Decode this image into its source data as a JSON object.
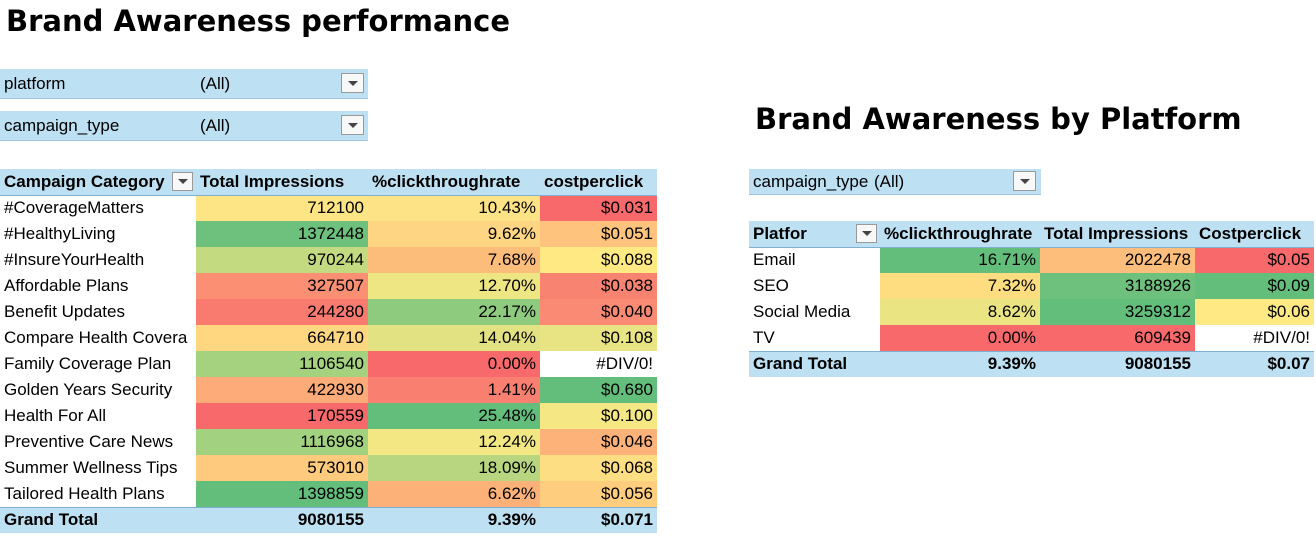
{
  "main_title": "Brand Awareness performance",
  "side_title": "Brand Awareness by Platform",
  "filters": {
    "platform": {
      "label": "platform",
      "value": "(All)"
    },
    "campaign_type": {
      "label": "campaign_type",
      "value": "(All)"
    }
  },
  "side_filter": {
    "label": "campaign_type",
    "value": "(All)"
  },
  "campaign_table": {
    "headers": [
      "Campaign Category",
      "Total Impressions",
      "%clickthroughrate",
      "costperclick"
    ],
    "rows": [
      {
        "name": "#CoverageMatters",
        "impressions": "712100",
        "ctr": "10.43%",
        "cpc": "$0.031",
        "colors": [
          "#fde484",
          "#fde386",
          "#f8696b"
        ]
      },
      {
        "name": "#HealthyLiving",
        "impressions": "1372448",
        "ctr": "9.62%",
        "cpc": "$0.051",
        "colors": [
          "#6dc17c",
          "#fed582",
          "#fec37c"
        ]
      },
      {
        "name": "#InsureYourHealth",
        "impressions": "970244",
        "ctr": "7.68%",
        "cpc": "$0.088",
        "colors": [
          "#c4da81",
          "#fcbd7b",
          "#fee983"
        ]
      },
      {
        "name": "Affordable Plans",
        "impressions": "327507",
        "ctr": "12.70%",
        "cpc": "$0.038",
        "colors": [
          "#fa8f74",
          "#eee583",
          "#f98371"
        ]
      },
      {
        "name": "Benefit Updates",
        "impressions": "244280",
        "ctr": "22.17%",
        "cpc": "$0.040",
        "colors": [
          "#f97b6f",
          "#8fcb7e",
          "#fa8a73"
        ]
      },
      {
        "name": "Compare Health Covera",
        "impressions": "664710",
        "ctr": "14.04%",
        "cpc": "$0.108",
        "colors": [
          "#fed780",
          "#e3e283",
          "#e8e383"
        ]
      },
      {
        "name": "Family Coverage Plan",
        "impressions": "1106540",
        "ctr": "0.00%",
        "cpc": "#DIV/0!",
        "colors": [
          "#a5d27f",
          "#f8696b",
          "#ffffff"
        ]
      },
      {
        "name": "Golden Years Security",
        "impressions": "422930",
        "ctr": "1.41%",
        "cpc": "$0.680",
        "colors": [
          "#fcab79",
          "#f97f70",
          "#63be7b"
        ]
      },
      {
        "name": "Health For All",
        "impressions": "170559",
        "ctr": "25.48%",
        "cpc": "$0.100",
        "colors": [
          "#f8696b",
          "#63be7b",
          "#f4e784"
        ]
      },
      {
        "name": "Preventive Care News",
        "impressions": "1116968",
        "ctr": "12.24%",
        "cpc": "$0.046",
        "colors": [
          "#a2d17f",
          "#f3e784",
          "#fdb27a"
        ]
      },
      {
        "name": "Summer Wellness Tips",
        "impressions": "573010",
        "ctr": "18.09%",
        "cpc": "$0.068",
        "colors": [
          "#fecb7e",
          "#b7d67f",
          "#fede83"
        ]
      },
      {
        "name": "Tailored Health Plans",
        "impressions": "1398859",
        "ctr": "6.62%",
        "cpc": "$0.056",
        "colors": [
          "#63be7b",
          "#fcb179",
          "#fecd7e"
        ]
      }
    ],
    "total": {
      "label": "Grand Total",
      "impressions": "9080155",
      "ctr": "9.39%",
      "cpc": "$0.071"
    }
  },
  "platform_table": {
    "headers": [
      "Platfor",
      "%clickthroughrate",
      "Total Impressions",
      "Costperclick"
    ],
    "rows": [
      {
        "name": "Email",
        "ctr": "16.71%",
        "impressions": "2022478",
        "cpc": "$0.05",
        "colors": [
          "#63be7b",
          "#fdbd7b",
          "#f8696b"
        ]
      },
      {
        "name": "SEO",
        "ctr": "7.32%",
        "impressions": "3188926",
        "cpc": "$0.09",
        "colors": [
          "#fedd81",
          "#6ec17c",
          "#63be7b"
        ]
      },
      {
        "name": "Social Media",
        "ctr": "8.62%",
        "impressions": "3259312",
        "cpc": "$0.06",
        "colors": [
          "#eae483",
          "#63be7b",
          "#fee984"
        ]
      },
      {
        "name": "TV",
        "ctr": "0.00%",
        "impressions": "609439",
        "cpc": "#DIV/0!",
        "colors": [
          "#f8696b",
          "#f8696b",
          "#ffffff"
        ]
      }
    ],
    "total": {
      "label": "Grand Total",
      "ctr": "9.39%",
      "impressions": "9080155",
      "cpc": "$0.07"
    }
  }
}
